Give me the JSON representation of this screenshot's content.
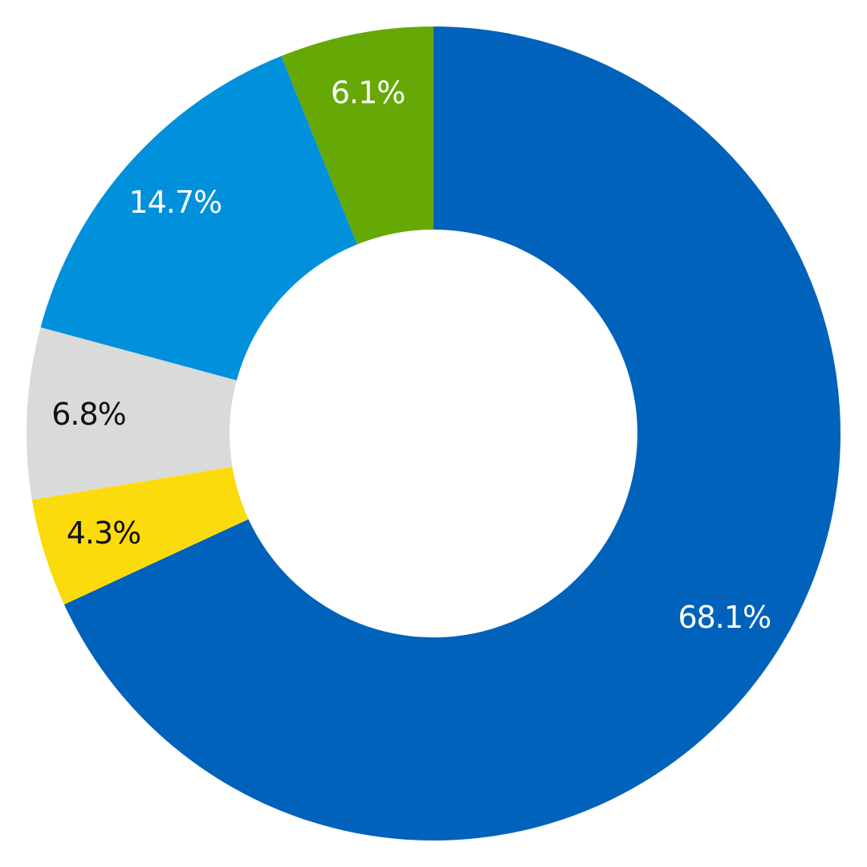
{
  "chart_data": {
    "type": "pie",
    "donut": true,
    "start": "top",
    "direction": "clockwise",
    "slices": [
      {
        "value": 68.1,
        "label": "68.1%",
        "color": "#0062BA",
        "label_color": "#ffffff"
      },
      {
        "value": 4.3,
        "label": "4.3%",
        "color": "#FCDB0D",
        "label_color": "#111111"
      },
      {
        "value": 6.8,
        "label": "6.8%",
        "color": "#DADADA",
        "label_color": "#111111"
      },
      {
        "value": 14.7,
        "label": "14.7%",
        "color": "#0090DC",
        "label_color": "#ffffff"
      },
      {
        "value": 6.1,
        "label": "6.1%",
        "color": "#66A806",
        "label_color": "#ffffff"
      }
    ]
  }
}
